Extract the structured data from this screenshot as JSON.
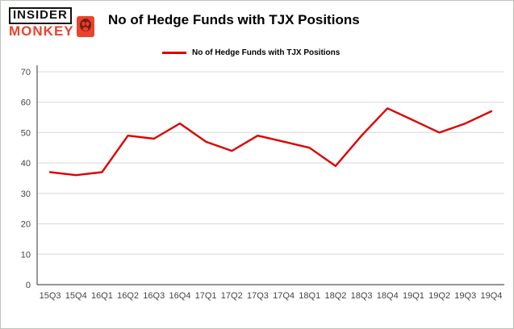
{
  "brand": {
    "line1": "INSIDER",
    "line2": "MONKEY",
    "accent_color": "#e8442e"
  },
  "header": {
    "title": "No of Hedge Funds with TJX Positions"
  },
  "legend": {
    "label": "No of Hedge Funds with TJX Positions",
    "color": "#dd0000"
  },
  "chart_data": {
    "type": "line",
    "title": "No of Hedge Funds with TJX Positions",
    "categories": [
      "15Q3",
      "15Q4",
      "16Q1",
      "16Q2",
      "16Q3",
      "16Q4",
      "17Q1",
      "17Q2",
      "17Q3",
      "17Q4",
      "18Q1",
      "18Q2",
      "18Q3",
      "18Q4",
      "19Q1",
      "19Q2",
      "19Q3",
      "19Q4"
    ],
    "series": [
      {
        "name": "No of Hedge Funds with TJX Positions",
        "color": "#dd0000",
        "values": [
          37,
          36,
          37,
          49,
          48,
          53,
          47,
          44,
          49,
          47,
          45,
          39,
          49,
          58,
          54,
          50,
          53,
          57
        ]
      }
    ],
    "xlabel": "",
    "ylabel": "",
    "ylim": [
      0,
      70
    ],
    "ytick_interval": 10,
    "grid": true,
    "legend_position": "top-left"
  }
}
